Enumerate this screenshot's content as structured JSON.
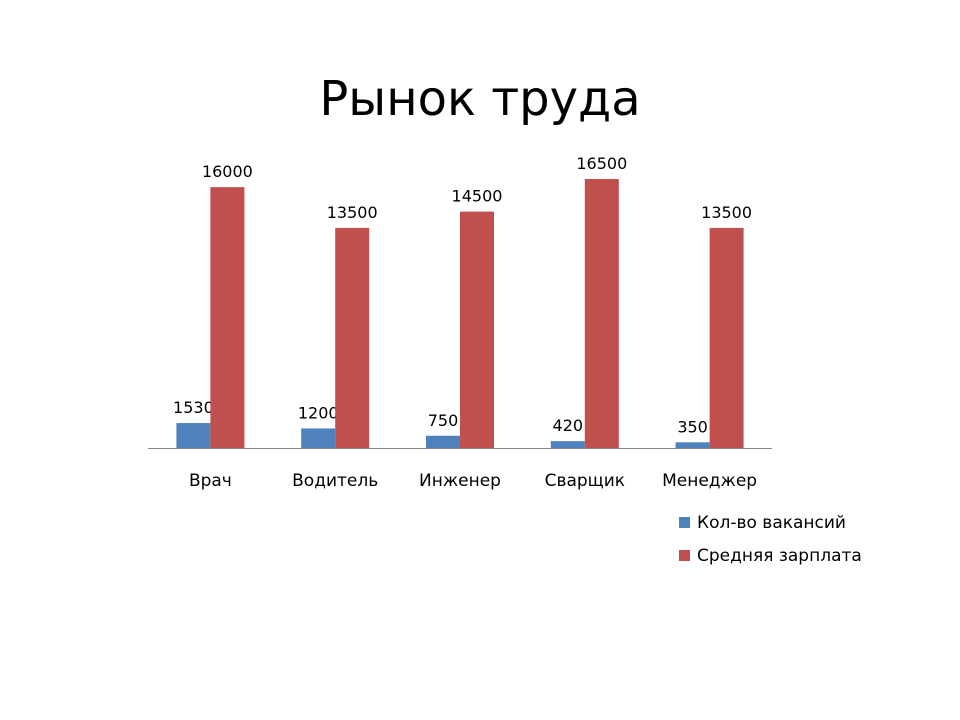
{
  "slide": {
    "title": "Рынок труда"
  },
  "colors": {
    "series_vacancies": "#4F81BD",
    "series_salary": "#C0504D",
    "axis": "#868686",
    "text": "#000000"
  },
  "chart_data": {
    "type": "bar",
    "title": "Рынок труда",
    "categories": [
      "Врач",
      "Водитель",
      "Инженер",
      "Сварщик",
      "Менеджер"
    ],
    "series": [
      {
        "name": "Кол-во вакансий",
        "values": [
          1530,
          1200,
          750,
          420,
          350
        ]
      },
      {
        "name": "Средняя зарплата",
        "values": [
          16000,
          13500,
          14500,
          16500,
          13500
        ]
      }
    ],
    "ylim": [
      0,
      16500
    ],
    "y_axis_visible": false,
    "grid": false,
    "data_labels": true,
    "legend_position": "bottom-right"
  }
}
